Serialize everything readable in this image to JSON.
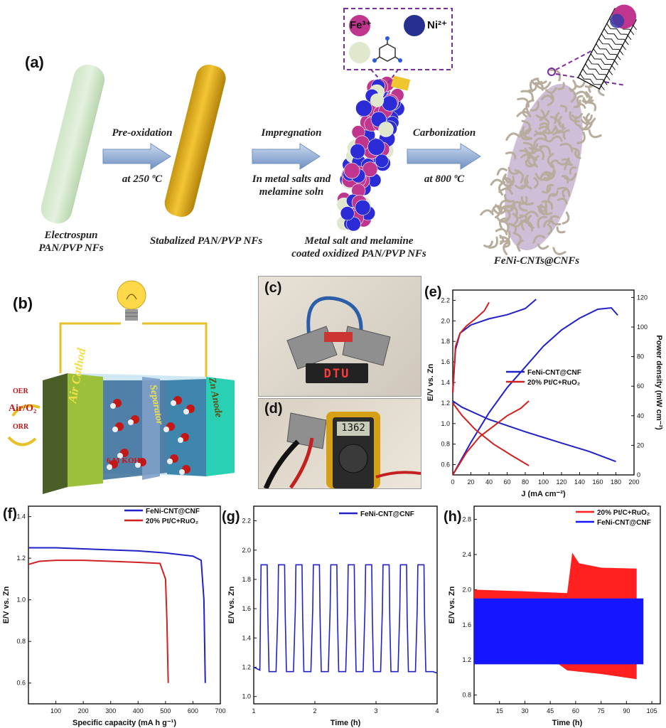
{
  "panel_a": {
    "label": "(a)",
    "legend": {
      "fe": "Fe³⁺",
      "ni": "Ni²⁺"
    },
    "steps": [
      {
        "top": "Pre-oxidation",
        "bottom": "at 250 ºC"
      },
      {
        "top": "Impregnation",
        "bottom1": "In metal salts and",
        "bottom2": "melamine soln"
      },
      {
        "top": "Carbonization",
        "bottom": "at 800 ºC"
      }
    ],
    "captions": {
      "c1a": "Electrospun",
      "c1b": "PAN/PVP NFs",
      "c2": "Stabalized PAN/PVP NFs",
      "c3a": "Metal salt and melamine",
      "c3b": "coated oxidized PAN/PVP NFs",
      "c4": "FeNi-CNTs@CNFs"
    }
  },
  "panel_b": {
    "label": "(b)",
    "oer": "OER",
    "orr": "ORR",
    "air": "Air/O₂",
    "cathode": "Air Cathod",
    "separator": "Separator",
    "anode": "Zn Anode",
    "electrolyte": "6 M KOH"
  },
  "panel_c": {
    "label": "(c)",
    "display": "DTU"
  },
  "panel_d": {
    "label": "(d)",
    "meter": "1362"
  },
  "panel_e": {
    "label": "(e)",
    "chart_data": {
      "type": "line",
      "xlabel": "J (mA cm⁻²)",
      "ylabel": "E/V vs. Zn",
      "y2label": "Power density (mW cm⁻²)",
      "xlim": [
        0,
        200
      ],
      "ylim": [
        0.5,
        2.3
      ],
      "y2lim": [
        0,
        125
      ],
      "xticks": [
        "0",
        "20",
        "40",
        "60",
        "80",
        "100",
        "120",
        "140",
        "160",
        "180",
        "200"
      ],
      "yticks": [
        "0.6",
        "0.8",
        "1.0",
        "1.2",
        "1.4",
        "1.6",
        "1.8",
        "2.0",
        "2.2"
      ],
      "y2ticks": [
        "0",
        "20",
        "40",
        "60",
        "80",
        "100",
        "120"
      ],
      "series": [
        {
          "name": "FeNi-CNT@CNF",
          "color": "#2121c8",
          "charge": [
            [
              0,
              1.3
            ],
            [
              3,
              1.72
            ],
            [
              8,
              1.88
            ],
            [
              20,
              1.96
            ],
            [
              40,
              2.02
            ],
            [
              60,
              2.06
            ],
            [
              80,
              2.12
            ],
            [
              92,
              2.21
            ]
          ],
          "discharge": [
            [
              0,
              1.22
            ],
            [
              10,
              1.16
            ],
            [
              40,
              1.04
            ],
            [
              80,
              0.92
            ],
            [
              120,
              0.81
            ],
            [
              150,
              0.73
            ],
            [
              180,
              0.63
            ]
          ],
          "power": [
            [
              0,
              0
            ],
            [
              20,
              22
            ],
            [
              40,
              42
            ],
            [
              60,
              59
            ],
            [
              80,
              73
            ],
            [
              100,
              87
            ],
            [
              120,
              98
            ],
            [
              140,
              106
            ],
            [
              160,
              112
            ],
            [
              175,
              113
            ],
            [
              182,
              108
            ]
          ]
        },
        {
          "name": "20% Pt/C+RuO₂",
          "color": "#d02020",
          "charge": [
            [
              0,
              1.3
            ],
            [
              3,
              1.75
            ],
            [
              8,
              1.88
            ],
            [
              15,
              1.95
            ],
            [
              25,
              2.02
            ],
            [
              35,
              2.1
            ],
            [
              40,
              2.18
            ]
          ],
          "discharge": [
            [
              0,
              1.2
            ],
            [
              10,
              1.08
            ],
            [
              25,
              0.94
            ],
            [
              45,
              0.8
            ],
            [
              65,
              0.69
            ],
            [
              84,
              0.59
            ]
          ],
          "power": [
            [
              0,
              0
            ],
            [
              15,
              15
            ],
            [
              30,
              26
            ],
            [
              45,
              33
            ],
            [
              60,
              40
            ],
            [
              75,
              45
            ],
            [
              84,
              50
            ]
          ]
        }
      ]
    }
  },
  "panel_f": {
    "label": "(f)",
    "chart_data": {
      "type": "line",
      "xlabel": "Specific capacity (mA h g⁻¹)",
      "ylabel": "E/V vs. Zn",
      "xlim": [
        0,
        700
      ],
      "ylim": [
        0.5,
        1.45
      ],
      "xticks": [
        "100",
        "200",
        "300",
        "400",
        "500",
        "600",
        "700"
      ],
      "yticks": [
        "0.6",
        "0.8",
        "1.0",
        "1.2",
        "1.4"
      ],
      "series": [
        {
          "name": "FeNi-CNT@CNF",
          "color": "#2121c8",
          "points": [
            [
              0,
              1.25
            ],
            [
              100,
              1.25
            ],
            [
              200,
              1.245
            ],
            [
              300,
              1.24
            ],
            [
              400,
              1.235
            ],
            [
              500,
              1.225
            ],
            [
              600,
              1.21
            ],
            [
              630,
              1.19
            ],
            [
              640,
              1.0
            ],
            [
              645,
              0.6
            ]
          ]
        },
        {
          "name": "20% Pt/C+RuO₂",
          "color": "#d02020",
          "points": [
            [
              0,
              1.17
            ],
            [
              40,
              1.185
            ],
            [
              100,
              1.19
            ],
            [
              200,
              1.19
            ],
            [
              300,
              1.185
            ],
            [
              400,
              1.18
            ],
            [
              480,
              1.175
            ],
            [
              500,
              1.1
            ],
            [
              505,
              0.9
            ],
            [
              510,
              0.6
            ]
          ]
        }
      ]
    }
  },
  "panel_g": {
    "label": "(g)",
    "chart_data": {
      "type": "line",
      "xlabel": "Time (h)",
      "ylabel": "E/V vs. Zn",
      "xlim": [
        1,
        4
      ],
      "ylim": [
        0.95,
        2.3
      ],
      "xticks": [
        "1",
        "2",
        "3",
        "4"
      ],
      "yticks": [
        "1.0",
        "1.2",
        "1.4",
        "1.6",
        "1.8",
        "2.0",
        "2.2"
      ],
      "series": [
        {
          "name": "FeNi-CNT@CNF",
          "color": "#2121c8",
          "cycles": 10,
          "high": 1.9,
          "low": 1.17,
          "start": 1.1,
          "period": 0.285
        }
      ]
    }
  },
  "panel_h": {
    "label": "(h)",
    "chart_data": {
      "type": "area",
      "xlabel": "Time (h)",
      "ylabel": "E/V vs. Zn",
      "xlim": [
        0,
        110
      ],
      "ylim": [
        0.7,
        2.95
      ],
      "xticks": [
        "15",
        "30",
        "45",
        "60",
        "75",
        "90",
        "105"
      ],
      "yticks": [
        "0.8",
        "1.2",
        "1.6",
        "2.0",
        "2.4",
        "2.8"
      ],
      "series": [
        {
          "name": "20% Pt/C+RuO₂",
          "color": "#ff2020",
          "duration": 96
        },
        {
          "name": "FeNi-CNT@CNF",
          "color": "#1515ff",
          "duration": 100,
          "high": 1.9,
          "low": 1.15
        }
      ]
    }
  }
}
